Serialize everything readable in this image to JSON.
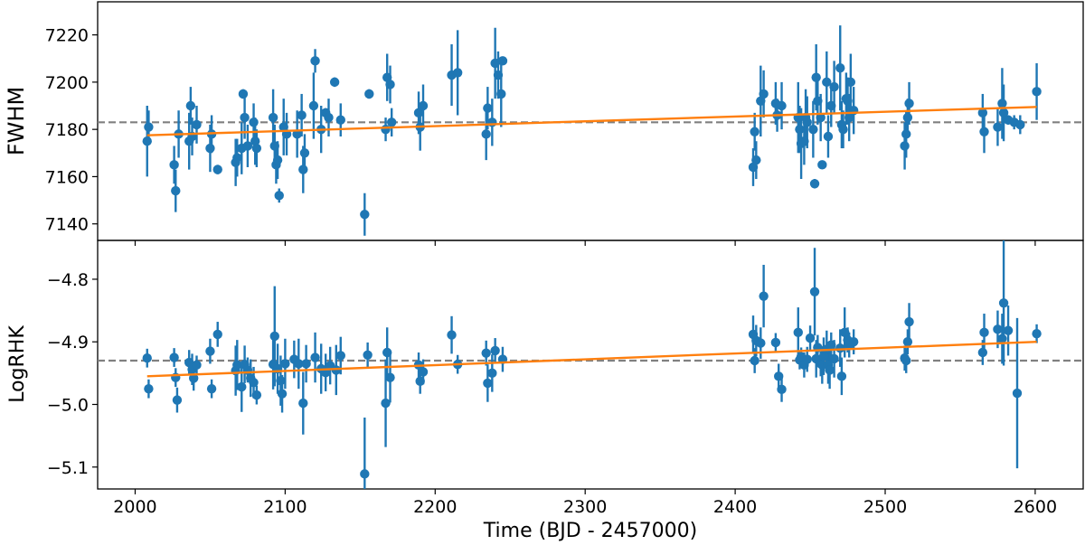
{
  "chart_data": [
    {
      "type": "scatter",
      "panel": "top",
      "ylabel": "FWHM",
      "xlabel": "",
      "xlim": [
        1975,
        2632
      ],
      "ylim": [
        7133,
        7234
      ],
      "yticks": [
        7140,
        7160,
        7180,
        7200,
        7220
      ],
      "grid": false,
      "colors": {
        "points": "#1f77b4",
        "trend": "#ff7f0e",
        "mean_line": "#808080"
      },
      "mean_value": 7183,
      "trend_line": {
        "x": [
          2008,
          2601
        ],
        "y": [
          7177.5,
          7189.5
        ]
      },
      "series": [
        {
          "points": [
            [
              2008,
              7175,
              15
            ],
            [
              2009,
              7181,
              7
            ],
            [
              2026,
              7165,
              8
            ],
            [
              2027,
              7154,
              9
            ],
            [
              2029,
              7178,
              10
            ],
            [
              2036,
              7175,
              12
            ],
            [
              2037,
              7190,
              8
            ],
            [
              2038,
              7177,
              8
            ],
            [
              2041,
              7182,
              8
            ],
            [
              2050,
              7172,
              10
            ],
            [
              2051,
              7178,
              8
            ],
            [
              2055,
              7163,
              2
            ],
            [
              2067,
              7166,
              10
            ],
            [
              2068,
              7168,
              8
            ],
            [
              2071,
              7172,
              11
            ],
            [
              2072,
              7195,
              2
            ],
            [
              2073,
              7185,
              9
            ],
            [
              2075,
              7173,
              9
            ],
            [
              2079,
              7183,
              8
            ],
            [
              2080,
              7175,
              10
            ],
            [
              2081,
              7172,
              8
            ],
            [
              2092,
              7185,
              12
            ],
            [
              2093,
              7173,
              9
            ],
            [
              2094,
              7165,
              8
            ],
            [
              2095,
              7167,
              8
            ],
            [
              2096,
              7152,
              3
            ],
            [
              2099,
              7181,
              12
            ],
            [
              2101,
              7178,
              9
            ],
            [
              2108,
              7178,
              10
            ],
            [
              2111,
              7186,
              9
            ],
            [
              2112,
              7163,
              10
            ],
            [
              2113,
              7170,
              8
            ],
            [
              2119,
              7190,
              14
            ],
            [
              2120,
              7209,
              5
            ],
            [
              2124,
              7180,
              10
            ],
            [
              2127,
              7187,
              2
            ],
            [
              2129,
              7185,
              8
            ],
            [
              2133,
              7200,
              2
            ],
            [
              2137,
              7184,
              7
            ],
            [
              2153,
              7144,
              9
            ],
            [
              2156,
              7195,
              2
            ],
            [
              2167,
              7180,
              5
            ],
            [
              2168,
              7202,
              10
            ],
            [
              2170,
              7199,
              8
            ],
            [
              2171,
              7183,
              6
            ],
            [
              2189,
              7187,
              9
            ],
            [
              2190,
              7181,
              10
            ],
            [
              2192,
              7190,
              9
            ],
            [
              2211,
              7203,
              13
            ],
            [
              2215,
              7204,
              18
            ],
            [
              2234,
              7178,
              11
            ],
            [
              2235,
              7189,
              9
            ],
            [
              2238,
              7183,
              10
            ],
            [
              2240,
              7208,
              15
            ],
            [
              2242,
              7203,
              10
            ],
            [
              2244,
              7195,
              14
            ],
            [
              2245,
              7209,
              1
            ],
            [
              2412,
              7164,
              8
            ],
            [
              2413,
              7179,
              8
            ],
            [
              2414,
              7167,
              8
            ],
            [
              2417,
              7192,
              15
            ],
            [
              2419,
              7195,
              10
            ],
            [
              2427,
              7191,
              9
            ],
            [
              2428,
              7186,
              7
            ],
            [
              2431,
              7190,
              10
            ],
            [
              2442,
              7185,
              15
            ],
            [
              2443,
              7180,
              10
            ],
            [
              2444,
              7174,
              15
            ],
            [
              2446,
              7175,
              10
            ],
            [
              2447,
              7185,
              12
            ],
            [
              2448,
              7183,
              11
            ],
            [
              2452,
              7180,
              12
            ],
            [
              2453,
              7157,
              2
            ],
            [
              2454,
              7202,
              14
            ],
            [
              2455,
              7192,
              10
            ],
            [
              2457,
              7185,
              10
            ],
            [
              2458,
              7165,
              1
            ],
            [
              2461,
              7200,
              13
            ],
            [
              2462,
              7177,
              9
            ],
            [
              2464,
              7190,
              9
            ],
            [
              2466,
              7198,
              11
            ],
            [
              2470,
              7206,
              18
            ],
            [
              2471,
              7182,
              10
            ],
            [
              2472,
              7180,
              8
            ],
            [
              2474,
              7193,
              11
            ],
            [
              2475,
              7192,
              10
            ],
            [
              2476,
              7185,
              10
            ],
            [
              2477,
              7200,
              12
            ],
            [
              2479,
              7188,
              10
            ],
            [
              2513,
              7173,
              10
            ],
            [
              2514,
              7178,
              10
            ],
            [
              2515,
              7185,
              8
            ],
            [
              2516,
              7191,
              9
            ],
            [
              2565,
              7187,
              8
            ],
            [
              2566,
              7179,
              9
            ],
            [
              2575,
              7181,
              8
            ],
            [
              2578,
              7191,
              15
            ],
            [
              2579,
              7187,
              12
            ],
            [
              2582,
              7184,
              2
            ],
            [
              2586,
              7183,
              3
            ],
            [
              2590,
              7182,
              4
            ],
            [
              2601,
              7196,
              12
            ]
          ]
        }
      ]
    },
    {
      "type": "scatter",
      "panel": "bottom",
      "ylabel": "LogRHK",
      "xlabel": "Time (BJD - 2457000)",
      "xlim": [
        1975,
        2632
      ],
      "ylim": [
        -5.135,
        -4.738
      ],
      "yticks": [
        -4.8,
        -4.9,
        -5.0,
        -5.1
      ],
      "xticks": [
        2000,
        2100,
        2200,
        2300,
        2400,
        2500,
        2600
      ],
      "grid": false,
      "colors": {
        "points": "#1f77b4",
        "trend": "#ff7f0e",
        "mean_line": "#808080"
      },
      "mean_value": -4.93,
      "trend_line": {
        "x": [
          2008,
          2601
        ],
        "y": [
          -4.955,
          -4.9
        ]
      },
      "series": [
        {
          "points": [
            [
              2008,
              -4.926,
              0.015
            ],
            [
              2009,
              -4.975,
              0.015
            ],
            [
              2026,
              -4.925,
              0.015
            ],
            [
              2027,
              -4.957,
              0.015
            ],
            [
              2028,
              -4.993,
              0.02
            ],
            [
              2036,
              -4.933,
              0.02
            ],
            [
              2038,
              -4.944,
              0.025
            ],
            [
              2039,
              -4.958,
              0.02
            ],
            [
              2041,
              -4.937,
              0.015
            ],
            [
              2050,
              -4.915,
              0.02
            ],
            [
              2051,
              -4.975,
              0.015
            ],
            [
              2055,
              -4.888,
              0.02
            ],
            [
              2067,
              -4.946,
              0.04
            ],
            [
              2068,
              -4.937,
              0.04
            ],
            [
              2071,
              -4.972,
              0.04
            ],
            [
              2073,
              -4.936,
              0.03
            ],
            [
              2075,
              -4.945,
              0.02
            ],
            [
              2077,
              -4.958,
              0.03
            ],
            [
              2079,
              -4.965,
              0.025
            ],
            [
              2081,
              -4.985,
              0.015
            ],
            [
              2092,
              -4.936,
              0.04
            ],
            [
              2093,
              -4.891,
              0.08
            ],
            [
              2095,
              -4.943,
              0.04
            ],
            [
              2097,
              -4.962,
              0.04
            ],
            [
              2098,
              -4.983,
              0.03
            ],
            [
              2100,
              -4.935,
              0.04
            ],
            [
              2106,
              -4.928,
              0.03
            ],
            [
              2109,
              -4.935,
              0.04
            ],
            [
              2112,
              -4.998,
              0.05
            ],
            [
              2114,
              -4.935,
              0.03
            ],
            [
              2120,
              -4.925,
              0.04
            ],
            [
              2124,
              -4.943,
              0.04
            ],
            [
              2127,
              -4.949,
              0.03
            ],
            [
              2130,
              -4.938,
              0.03
            ],
            [
              2134,
              -4.945,
              0.04
            ],
            [
              2137,
              -4.922,
              0.03
            ],
            [
              2153,
              -5.111,
              0.09
            ],
            [
              2155,
              -4.921,
              0.02
            ],
            [
              2167,
              -4.998,
              0.07
            ],
            [
              2168,
              -4.917,
              0.04
            ],
            [
              2170,
              -4.957,
              0.04
            ],
            [
              2189,
              -4.937,
              0.02
            ],
            [
              2190,
              -4.963,
              0.02
            ],
            [
              2192,
              -4.948,
              0.02
            ],
            [
              2211,
              -4.889,
              0.03
            ],
            [
              2215,
              -4.936,
              0.015
            ],
            [
              2234,
              -4.918,
              0.02
            ],
            [
              2235,
              -4.966,
              0.03
            ],
            [
              2238,
              -4.95,
              0.03
            ],
            [
              2240,
              -4.914,
              0.02
            ],
            [
              2245,
              -4.928,
              0.02
            ],
            [
              2412,
              -4.888,
              0.03
            ],
            [
              2413,
              -4.93,
              0.02
            ],
            [
              2414,
              -4.898,
              0.025
            ],
            [
              2417,
              -4.902,
              0.025
            ],
            [
              2419,
              -4.827,
              0.05
            ],
            [
              2427,
              -4.901,
              0.015
            ],
            [
              2429,
              -4.955,
              0.02
            ],
            [
              2431,
              -4.976,
              0.02
            ],
            [
              2442,
              -4.885,
              0.04
            ],
            [
              2443,
              -4.929,
              0.015
            ],
            [
              2444,
              -4.924,
              0.015
            ],
            [
              2446,
              -4.937,
              0.02
            ],
            [
              2448,
              -4.928,
              0.02
            ],
            [
              2450,
              -4.894,
              0.02
            ],
            [
              2453,
              -4.82,
              0.07
            ],
            [
              2454,
              -4.927,
              0.03
            ],
            [
              2455,
              -4.909,
              0.02
            ],
            [
              2457,
              -4.935,
              0.02
            ],
            [
              2458,
              -4.937,
              0.03
            ],
            [
              2459,
              -4.923,
              0.03
            ],
            [
              2461,
              -4.912,
              0.03
            ],
            [
              2462,
              -4.937,
              0.03
            ],
            [
              2463,
              -4.945,
              0.03
            ],
            [
              2464,
              -4.905,
              0.02
            ],
            [
              2466,
              -4.927,
              0.03
            ],
            [
              2470,
              -4.91,
              0.03
            ],
            [
              2471,
              -4.955,
              0.03
            ],
            [
              2473,
              -4.885,
              0.04
            ],
            [
              2475,
              -4.897,
              0.02
            ],
            [
              2476,
              -4.905,
              0.02
            ],
            [
              2479,
              -4.9,
              0.02
            ],
            [
              2513,
              -4.926,
              0.02
            ],
            [
              2514,
              -4.93,
              0.02
            ],
            [
              2515,
              -4.9,
              0.02
            ],
            [
              2516,
              -4.868,
              0.03
            ],
            [
              2565,
              -4.917,
              0.02
            ],
            [
              2566,
              -4.885,
              0.03
            ],
            [
              2575,
              -4.88,
              0.03
            ],
            [
              2578,
              -4.895,
              0.04
            ],
            [
              2579,
              -4.838,
              0.1
            ],
            [
              2582,
              -4.882,
              0.04
            ],
            [
              2588,
              -4.982,
              0.12
            ],
            [
              2601,
              -4.887,
              0.015
            ]
          ]
        }
      ]
    }
  ]
}
